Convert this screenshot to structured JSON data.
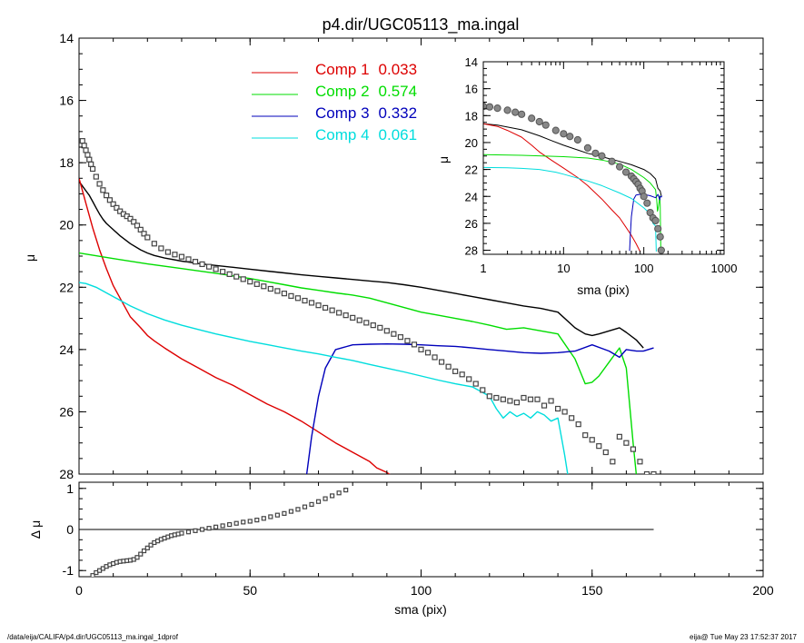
{
  "title": "p4.dir/UGC05113_ma.ingal",
  "footer": {
    "path": "/data/eija/CALIFA/p4.dir/UGC05113_ma.ingal_1dprof",
    "stamp": "eija@  Tue May 23 17:52:37 2017"
  },
  "colors": {
    "comp1": "#dd0000",
    "comp2": "#00dd00",
    "comp3": "#0000bb",
    "comp4": "#00dddd",
    "total": "#000000",
    "data": "#555555"
  },
  "chart_data": [
    {
      "type": "line",
      "name": "main",
      "xlabel": "",
      "ylabel": "μ",
      "xlim": [
        0,
        200
      ],
      "ylim": [
        28,
        14
      ],
      "xticks": [
        "0",
        "50",
        "100",
        "150",
        "200"
      ],
      "yticks": [
        "14",
        "16",
        "18",
        "20",
        "22",
        "24",
        "26",
        "28"
      ],
      "legend_placement": "top-center",
      "legend": [
        {
          "label": "Comp 1",
          "value": "0.033",
          "color_key": "comp1"
        },
        {
          "label": "Comp 2",
          "value": "0.574",
          "color_key": "comp2"
        },
        {
          "label": "Comp 3",
          "value": "0.332",
          "color_key": "comp3"
        },
        {
          "label": "Comp 4",
          "value": "0.061",
          "color_key": "comp4"
        }
      ],
      "series": [
        {
          "key": "data",
          "style": "squares",
          "x": [
            1,
            1.5,
            2,
            2.5,
            3,
            3.5,
            4,
            5,
            6,
            7,
            8,
            9,
            10,
            11,
            12,
            13,
            14,
            15,
            16,
            17,
            18,
            19,
            20,
            22,
            24,
            26,
            28,
            30,
            32,
            34,
            36,
            38,
            40,
            42,
            44,
            46,
            48,
            50,
            52,
            54,
            56,
            58,
            60,
            62,
            64,
            66,
            68,
            70,
            72,
            74,
            76,
            78,
            80,
            82,
            84,
            86,
            88,
            90,
            92,
            94,
            96,
            98,
            100,
            102,
            104,
            106,
            108,
            110,
            112,
            114,
            116,
            118,
            120,
            122,
            124,
            126,
            128,
            130,
            132,
            134,
            136,
            138,
            140,
            142,
            144,
            146,
            148,
            150,
            152,
            154,
            156,
            158,
            160,
            162,
            164,
            166,
            168
          ],
          "y": [
            17.3,
            17.45,
            17.6,
            17.75,
            17.9,
            18.05,
            18.2,
            18.45,
            18.68,
            18.88,
            19.05,
            19.2,
            19.33,
            19.45,
            19.56,
            19.65,
            19.72,
            19.8,
            19.9,
            20.02,
            20.15,
            20.28,
            20.4,
            20.6,
            20.75,
            20.87,
            20.95,
            21.02,
            21.1,
            21.18,
            21.26,
            21.34,
            21.42,
            21.5,
            21.58,
            21.66,
            21.74,
            21.82,
            21.9,
            21.97,
            22.05,
            22.12,
            22.2,
            22.28,
            22.35,
            22.43,
            22.5,
            22.58,
            22.66,
            22.74,
            22.82,
            22.9,
            22.98,
            23.06,
            23.14,
            23.22,
            23.3,
            23.4,
            23.5,
            23.6,
            23.72,
            23.84,
            24.0,
            24.1,
            24.25,
            24.4,
            24.55,
            24.7,
            24.8,
            24.95,
            25.1,
            25.3,
            25.5,
            25.55,
            25.6,
            25.65,
            25.7,
            25.55,
            25.6,
            25.6,
            25.8,
            25.65,
            25.9,
            26.0,
            26.2,
            26.4,
            26.75,
            26.9,
            27.1,
            27.3,
            27.6,
            26.8,
            27.0,
            27.2,
            27.6,
            28.0,
            28.0
          ]
        },
        {
          "key": "total",
          "x": [
            0,
            1,
            2,
            3,
            4,
            5,
            6,
            7,
            8,
            10,
            12,
            15,
            18,
            20,
            22,
            25,
            30,
            35,
            40,
            45,
            50,
            55,
            60,
            65,
            70,
            75,
            80,
            85,
            90,
            95,
            100,
            105,
            110,
            115,
            120,
            125,
            130,
            135,
            140,
            145,
            148,
            150,
            152,
            155,
            158,
            160,
            163,
            165
          ],
          "y": [
            18.6,
            18.75,
            18.9,
            19.05,
            19.25,
            19.45,
            19.65,
            19.82,
            19.95,
            20.15,
            20.35,
            20.6,
            20.8,
            20.9,
            20.98,
            21.06,
            21.16,
            21.24,
            21.3,
            21.36,
            21.42,
            21.48,
            21.54,
            21.6,
            21.65,
            21.7,
            21.75,
            21.8,
            21.85,
            21.92,
            22.0,
            22.1,
            22.2,
            22.3,
            22.4,
            22.5,
            22.6,
            22.68,
            22.8,
            23.3,
            23.5,
            23.55,
            23.5,
            23.4,
            23.3,
            23.45,
            23.7,
            23.95
          ]
        },
        {
          "key": "comp1",
          "x": [
            0,
            2,
            4,
            6,
            8,
            10,
            12,
            15,
            18,
            20,
            22,
            25,
            30,
            35,
            40,
            45,
            50,
            55,
            60,
            65,
            70,
            75,
            80,
            85,
            87,
            90,
            92
          ],
          "y": [
            18.5,
            19.3,
            20.1,
            20.8,
            21.4,
            21.95,
            22.35,
            22.95,
            23.3,
            23.55,
            23.72,
            23.95,
            24.3,
            24.6,
            24.9,
            25.15,
            25.45,
            25.75,
            26.0,
            26.3,
            26.65,
            27.0,
            27.3,
            27.6,
            27.8,
            27.95,
            28.1
          ]
        },
        {
          "key": "comp2",
          "x": [
            0,
            10,
            20,
            30,
            40,
            50,
            55,
            60,
            65,
            70,
            75,
            80,
            85,
            90,
            95,
            100,
            105,
            110,
            115,
            120,
            125,
            130,
            135,
            140,
            145,
            148,
            150,
            152,
            155,
            158,
            160,
            162,
            163
          ],
          "y": [
            20.9,
            21.08,
            21.25,
            21.4,
            21.55,
            21.72,
            21.82,
            21.92,
            22.02,
            22.1,
            22.18,
            22.25,
            22.35,
            22.5,
            22.65,
            22.8,
            22.9,
            23.0,
            23.1,
            23.22,
            23.35,
            23.3,
            23.4,
            23.5,
            24.3,
            25.1,
            25.05,
            24.85,
            24.4,
            23.95,
            24.6,
            27.0,
            28.1
          ]
        },
        {
          "key": "comp3",
          "x": [
            66.5,
            68,
            70,
            72,
            75,
            80,
            85,
            90,
            95,
            100,
            105,
            110,
            115,
            120,
            125,
            130,
            135,
            140,
            145,
            150,
            155,
            158,
            160,
            163,
            165,
            168
          ],
          "y": [
            28.05,
            26.8,
            25.5,
            24.6,
            24.0,
            23.85,
            23.83,
            23.82,
            23.83,
            23.85,
            23.88,
            23.9,
            23.95,
            24.0,
            24.05,
            24.1,
            24.12,
            24.1,
            24.05,
            23.85,
            24.05,
            24.25,
            24.0,
            24.05,
            24.05,
            23.95
          ]
        },
        {
          "key": "comp4",
          "x": [
            0,
            2,
            5,
            10,
            15,
            20,
            25,
            30,
            35,
            40,
            45,
            50,
            55,
            60,
            65,
            70,
            75,
            80,
            85,
            90,
            95,
            100,
            105,
            110,
            115,
            120,
            122,
            124,
            126,
            128,
            130,
            132,
            134,
            136,
            138,
            140,
            141,
            142,
            143
          ],
          "y": [
            21.85,
            21.88,
            22.0,
            22.3,
            22.6,
            22.85,
            23.05,
            23.22,
            23.36,
            23.5,
            23.62,
            23.74,
            23.84,
            23.95,
            24.05,
            24.14,
            24.25,
            24.35,
            24.48,
            24.6,
            24.72,
            24.85,
            24.98,
            25.1,
            25.2,
            25.5,
            25.9,
            26.2,
            26.0,
            26.15,
            26.05,
            26.2,
            26.0,
            26.1,
            26.3,
            26.2,
            26.8,
            27.4,
            28.1
          ]
        }
      ]
    },
    {
      "type": "scatter",
      "name": "residual",
      "xlabel": "sma (pix)",
      "ylabel": "Δ μ",
      "xlim": [
        0,
        200
      ],
      "ylim": [
        -1.15,
        1.15
      ],
      "xticks": [
        "0",
        "50",
        "100",
        "150",
        "200"
      ],
      "yticks": [
        "1",
        "0",
        "-1"
      ],
      "zero_line_x": [
        0,
        168
      ],
      "series": [
        {
          "key": "data",
          "style": "squares",
          "x": [
            4,
            5,
            6,
            7,
            8,
            9,
            10,
            11,
            12,
            13,
            14,
            15,
            16,
            17,
            18,
            19,
            20,
            21,
            22,
            23,
            24,
            25,
            26,
            27,
            28,
            29,
            30,
            32,
            34,
            36,
            38,
            40,
            42,
            44,
            46,
            48,
            50,
            52,
            54,
            56,
            58,
            60,
            62,
            64,
            66,
            68,
            70,
            72,
            74,
            76,
            78
          ],
          "y": [
            -1.12,
            -1.05,
            -1.0,
            -0.95,
            -0.9,
            -0.86,
            -0.83,
            -0.8,
            -0.78,
            -0.77,
            -0.76,
            -0.75,
            -0.73,
            -0.68,
            -0.6,
            -0.52,
            -0.45,
            -0.38,
            -0.32,
            -0.28,
            -0.24,
            -0.21,
            -0.18,
            -0.15,
            -0.13,
            -0.11,
            -0.09,
            -0.06,
            -0.03,
            0.0,
            0.03,
            0.06,
            0.09,
            0.12,
            0.15,
            0.18,
            0.2,
            0.23,
            0.27,
            0.31,
            0.35,
            0.39,
            0.44,
            0.49,
            0.55,
            0.61,
            0.68,
            0.75,
            0.82,
            0.89,
            0.96
          ]
        }
      ]
    },
    {
      "type": "line",
      "name": "inset",
      "xlabel": "sma (pix)",
      "ylabel": "μ",
      "x_scale": "log",
      "xlim": [
        1,
        1000
      ],
      "ylim": [
        28.3,
        14
      ],
      "xticks": [
        "1",
        "10",
        "100",
        "1000"
      ],
      "yticks": [
        "14",
        "16",
        "18",
        "20",
        "22",
        "24",
        "26",
        "28"
      ],
      "series": [
        {
          "key": "data",
          "style": "circles",
          "x": [
            1,
            1.2,
            1.5,
            2,
            2.5,
            3,
            4,
            5,
            6,
            8,
            10,
            12,
            15,
            20,
            25,
            30,
            40,
            50,
            60,
            70,
            75,
            80,
            85,
            90,
            95,
            100,
            110,
            120,
            130,
            140,
            150,
            160,
            165
          ],
          "y": [
            17.3,
            17.35,
            17.45,
            17.6,
            17.75,
            17.9,
            18.2,
            18.45,
            18.7,
            19.1,
            19.35,
            19.55,
            19.8,
            20.4,
            20.8,
            21.0,
            21.4,
            21.8,
            22.2,
            22.5,
            22.7,
            22.9,
            23.1,
            23.4,
            23.6,
            24.0,
            24.5,
            25.2,
            25.6,
            25.8,
            26.4,
            27.0,
            28.0
          ]
        },
        {
          "key": "total",
          "x": [
            1,
            1.5,
            2,
            3,
            4,
            5,
            7,
            10,
            15,
            20,
            30,
            40,
            50,
            70,
            100,
            120,
            140,
            150,
            155,
            160,
            165
          ],
          "y": [
            18.6,
            18.7,
            18.85,
            19.05,
            19.3,
            19.5,
            19.85,
            20.2,
            20.55,
            20.8,
            21.05,
            21.25,
            21.4,
            21.65,
            22.0,
            22.3,
            22.7,
            23.4,
            23.5,
            23.6,
            23.95
          ]
        },
        {
          "key": "comp1",
          "x": [
            1,
            1.5,
            2,
            3,
            4,
            5,
            7,
            10,
            15,
            20,
            30,
            40,
            50,
            60,
            70,
            80,
            90
          ],
          "y": [
            18.6,
            18.8,
            19.1,
            19.6,
            20.2,
            20.7,
            21.3,
            21.9,
            22.6,
            23.2,
            24.2,
            25.0,
            25.6,
            26.3,
            26.9,
            27.5,
            28.1
          ]
        },
        {
          "key": "comp2",
          "x": [
            1,
            3,
            10,
            20,
            30,
            50,
            70,
            100,
            120,
            140,
            145,
            148,
            150,
            155,
            158,
            160,
            162,
            163
          ],
          "y": [
            20.9,
            20.95,
            21.05,
            21.15,
            21.3,
            21.6,
            22.0,
            22.6,
            23.0,
            23.5,
            24.3,
            25.1,
            25.0,
            24.4,
            23.95,
            24.6,
            27.0,
            28.1
          ]
        },
        {
          "key": "comp3",
          "x": [
            66.5,
            68,
            70,
            75,
            80,
            90,
            100,
            120,
            140,
            150,
            158,
            160,
            165,
            168
          ],
          "y": [
            28.05,
            26.8,
            25.5,
            24.2,
            23.9,
            23.85,
            23.85,
            23.95,
            24.1,
            23.85,
            24.25,
            24.0,
            24.05,
            23.95
          ]
        },
        {
          "key": "comp4",
          "x": [
            1,
            2,
            3,
            5,
            8,
            10,
            15,
            20,
            30,
            50,
            70,
            100,
            120,
            130,
            140,
            141,
            142,
            143
          ],
          "y": [
            21.85,
            21.88,
            21.92,
            22.0,
            22.2,
            22.35,
            22.65,
            22.85,
            23.2,
            23.75,
            24.15,
            24.85,
            25.3,
            26.0,
            26.2,
            26.8,
            27.4,
            28.1
          ]
        }
      ]
    }
  ]
}
